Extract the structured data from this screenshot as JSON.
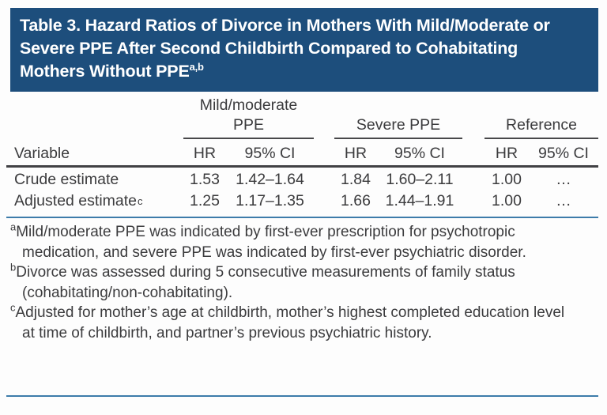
{
  "title": {
    "text": "Table 3. Hazard Ratios of Divorce in Mothers With Mild/Moderate or Severe PPE After Second Childbirth Compared to Cohabitating Mothers Without PPE",
    "footnote_marker": "a,b"
  },
  "table": {
    "variable_header": "Variable",
    "groups": [
      {
        "label": "Mild/moderate PPE"
      },
      {
        "label": "Severe PPE"
      },
      {
        "label": "Reference"
      }
    ],
    "sub_headers": {
      "hr": "HR",
      "ci": "95% CI"
    },
    "rows": [
      {
        "variable": "Crude estimate",
        "variable_sup": "",
        "cells": [
          "1.53",
          "1.42–1.64",
          "1.84",
          "1.60–2.11",
          "1.00",
          "…"
        ]
      },
      {
        "variable": "Adjusted estimate",
        "variable_sup": "c",
        "cells": [
          "1.25",
          "1.17–1.35",
          "1.66",
          "1.44–1.91",
          "1.00",
          "…"
        ]
      }
    ]
  },
  "footnotes": [
    {
      "sup": "a",
      "text": "Mild/moderate PPE was indicated by first-ever prescription for psychotropic medication, and severe PPE was indicated by first-ever psychiatric disorder."
    },
    {
      "sup": "b",
      "text": "Divorce was assessed during 5 consecutive measurements of family status (cohabitating/non-cohabitating)."
    },
    {
      "sup": "c",
      "text": "Adjusted for mother’s age at childbirth, mother’s highest completed education level at time of childbirth, and partner’s previous psychiatric history."
    }
  ],
  "colors": {
    "title_background": "#1d4e7c",
    "title_text": "#ffffff",
    "body_text": "#3b3b3d",
    "rule_dark": "#414144",
    "rule_blue": "#3d7caa"
  }
}
